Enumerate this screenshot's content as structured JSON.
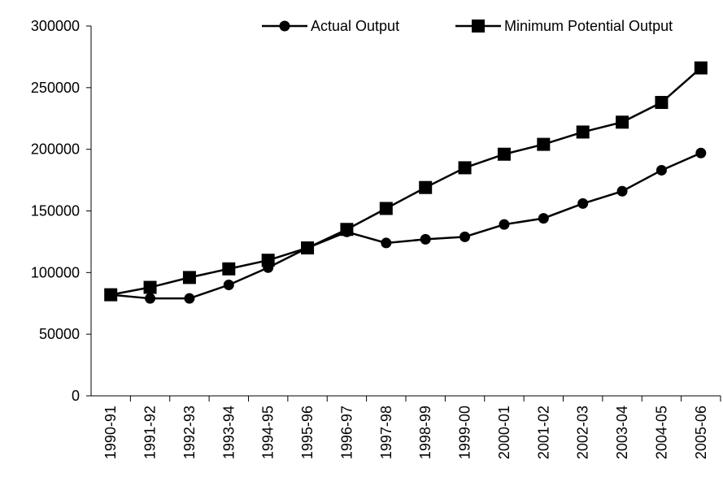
{
  "chart_data": {
    "type": "line",
    "categories": [
      "1990-91",
      "1991-92",
      "1992-93",
      "1993-94",
      "1994-95",
      "1995-96",
      "1996-97",
      "1997-98",
      "1998-99",
      "1999-00",
      "2000-01",
      "2001-02",
      "2002-03",
      "2003-04",
      "2004-05",
      "2005-06"
    ],
    "series": [
      {
        "name": "Actual Output",
        "color": "#000000",
        "marker": "circle",
        "values": [
          82000,
          79000,
          79000,
          90000,
          104000,
          120000,
          133000,
          124000,
          127000,
          129000,
          139000,
          144000,
          156000,
          166000,
          183000,
          197000
        ]
      },
      {
        "name": "Minimum Potential Output",
        "color": "#000000",
        "marker": "square",
        "values": [
          82000,
          88000,
          96000,
          103000,
          110000,
          120000,
          135000,
          152000,
          169000,
          185000,
          196000,
          204000,
          214000,
          222000,
          238000,
          266000
        ]
      }
    ],
    "ylim": [
      0,
      300000
    ],
    "yticks": [
      0,
      50000,
      100000,
      150000,
      200000,
      250000,
      300000
    ],
    "grid": false,
    "legend": "top-right"
  }
}
